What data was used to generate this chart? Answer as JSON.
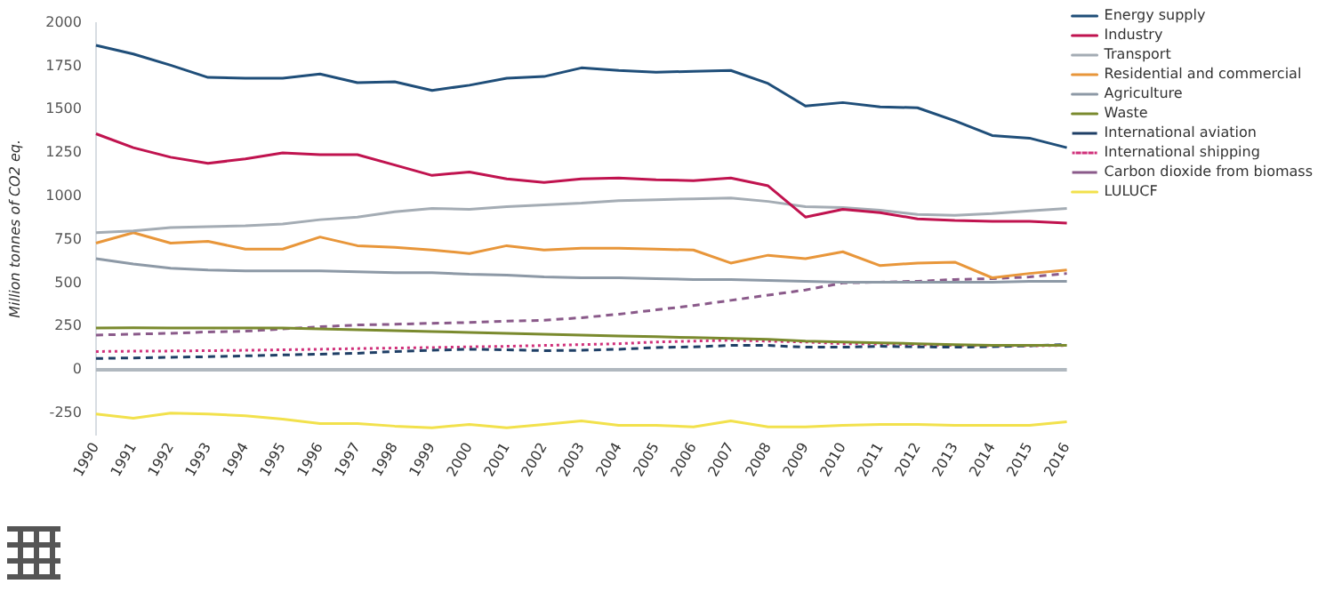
{
  "chart_data": {
    "type": "line",
    "ylabel": "Million tonnes of CO2 eq.",
    "categories": [
      "1990",
      "1991",
      "1992",
      "1993",
      "1994",
      "1995",
      "1996",
      "1997",
      "1998",
      "1999",
      "2000",
      "2001",
      "2002",
      "2003",
      "2004",
      "2005",
      "2006",
      "2007",
      "2008",
      "2009",
      "2010",
      "2011",
      "2012",
      "2013",
      "2014",
      "2015",
      "2016"
    ],
    "ylim": [
      -375,
      2000
    ],
    "yticks": [
      -250,
      0,
      250,
      500,
      750,
      1000,
      1250,
      1500,
      1750,
      2000
    ],
    "grid": false,
    "legend": "right",
    "marker": "none",
    "ref_lines": [
      {
        "axis": "y",
        "value": 0,
        "color": "#b0b8bf"
      }
    ],
    "series": [
      {
        "name": "Energy supply",
        "color": "#1f4e79",
        "line_style": "solid",
        "values": [
          1870,
          1820,
          1755,
          1685,
          1680,
          1680,
          1705,
          1655,
          1660,
          1610,
          1640,
          1680,
          1690,
          1740,
          1725,
          1715,
          1720,
          1725,
          1650,
          1520,
          1540,
          1515,
          1510,
          1435,
          1350,
          1335,
          1280
        ]
      },
      {
        "name": "Industry",
        "color": "#c0134f",
        "line_style": "solid",
        "values": [
          1360,
          1280,
          1225,
          1190,
          1215,
          1250,
          1240,
          1240,
          1180,
          1120,
          1140,
          1100,
          1080,
          1100,
          1105,
          1095,
          1090,
          1105,
          1060,
          880,
          925,
          905,
          870,
          860,
          855,
          855,
          845
        ]
      },
      {
        "name": "Transport",
        "color": "#a4acb4",
        "line_style": "solid",
        "values": [
          790,
          800,
          820,
          825,
          830,
          840,
          865,
          880,
          910,
          930,
          925,
          940,
          950,
          960,
          975,
          980,
          985,
          990,
          970,
          940,
          935,
          920,
          895,
          890,
          900,
          915,
          930
        ]
      },
      {
        "name": "Residential and commercial",
        "color": "#e8963a",
        "line_style": "solid",
        "values": [
          730,
          790,
          730,
          740,
          695,
          695,
          765,
          715,
          705,
          690,
          670,
          715,
          690,
          700,
          700,
          695,
          690,
          615,
          660,
          640,
          680,
          600,
          615,
          620,
          530,
          555,
          575
        ]
      },
      {
        "name": "Agriculture",
        "color": "#8d99a6",
        "line_style": "solid",
        "values": [
          640,
          610,
          585,
          575,
          570,
          570,
          570,
          565,
          560,
          560,
          550,
          545,
          535,
          530,
          530,
          525,
          520,
          520,
          515,
          510,
          505,
          505,
          505,
          505,
          505,
          510,
          510
        ]
      },
      {
        "name": "Waste",
        "color": "#7a8a2e",
        "line_style": "solid",
        "values": [
          240,
          242,
          240,
          240,
          240,
          240,
          235,
          230,
          225,
          220,
          215,
          210,
          205,
          200,
          195,
          190,
          185,
          180,
          175,
          165,
          160,
          155,
          150,
          145,
          140,
          140,
          140
        ]
      },
      {
        "name": "International aviation",
        "color": "#1f3f66",
        "line_style": "dashed",
        "values": [
          65,
          68,
          72,
          75,
          80,
          85,
          90,
          95,
          105,
          112,
          118,
          115,
          110,
          112,
          118,
          128,
          132,
          140,
          140,
          130,
          130,
          135,
          132,
          130,
          133,
          138,
          145
        ]
      },
      {
        "name": "International shipping",
        "color": "#d0307a",
        "line_style": "dotted",
        "values": [
          105,
          107,
          108,
          110,
          112,
          115,
          118,
          122,
          125,
          128,
          132,
          135,
          140,
          145,
          150,
          160,
          165,
          170,
          165,
          160,
          150,
          148,
          145,
          140,
          138,
          138,
          140
        ]
      },
      {
        "name": "Carbon dioxide from biomass",
        "color": "#8a5a8a",
        "line_style": "dashed",
        "values": [
          200,
          205,
          210,
          218,
          222,
          235,
          248,
          258,
          262,
          268,
          272,
          280,
          285,
          300,
          320,
          345,
          370,
          400,
          430,
          460,
          500,
          505,
          510,
          520,
          525,
          535,
          555
        ]
      },
      {
        "name": "LULUCF",
        "color": "#f2e14c",
        "line_style": "solid",
        "values": [
          -255,
          -280,
          -250,
          -255,
          -265,
          -285,
          -310,
          -310,
          -325,
          -335,
          -315,
          -335,
          -315,
          -295,
          -320,
          -320,
          -330,
          -295,
          -330,
          -330,
          -320,
          -315,
          -315,
          -320,
          -320,
          -320,
          -300
        ]
      }
    ]
  }
}
